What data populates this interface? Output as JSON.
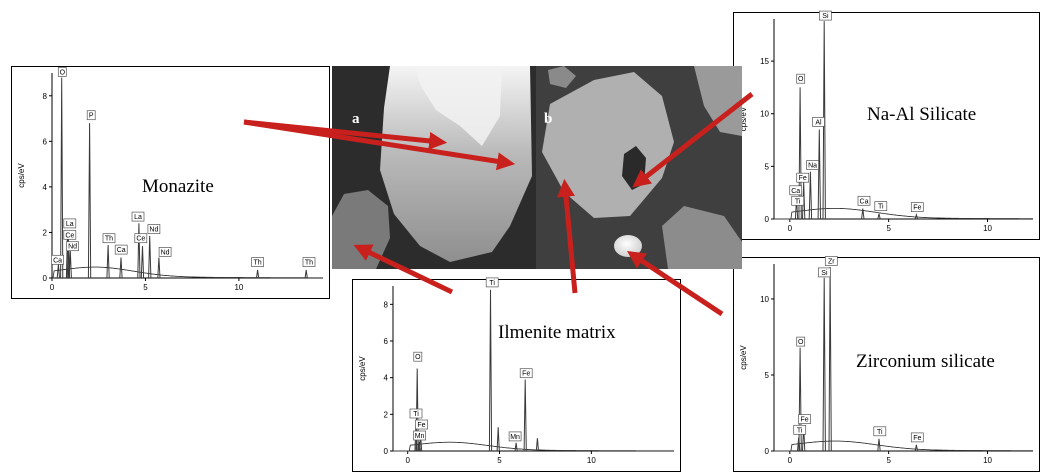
{
  "micrograph": {
    "label_a": "a",
    "label_b": "b"
  },
  "colors": {
    "arrow": "#c8201d",
    "spectrum_line": "#3a3a3a",
    "frame": "#000000"
  },
  "chart_data": [
    {
      "id": "monazite",
      "type": "line",
      "title": "",
      "mineral": "Monazite",
      "ylabel": "cps/eV",
      "xlabel": "",
      "xlim": [
        0,
        14.5
      ],
      "ylim": [
        0,
        9
      ],
      "xticks": [
        0,
        5,
        10
      ],
      "yticks": [
        0,
        2,
        4,
        6,
        8
      ],
      "peaks": [
        {
          "label": "O",
          "x": 0.52,
          "y": 8.8
        },
        {
          "label": "P",
          "x": 2.01,
          "y": 6.8
        },
        {
          "label": "La",
          "x": 0.83,
          "y": 2.1
        },
        {
          "label": "Ce",
          "x": 0.88,
          "y": 1.7
        },
        {
          "label": "Nd",
          "x": 0.98,
          "y": 1.2
        },
        {
          "label": "Ca",
          "x": 0.34,
          "y": 0.6
        },
        {
          "label": "Th",
          "x": 3.0,
          "y": 1.45
        },
        {
          "label": "Ca",
          "x": 3.69,
          "y": 0.9
        },
        {
          "label": "La",
          "x": 4.65,
          "y": 2.4
        },
        {
          "label": "Ce",
          "x": 4.84,
          "y": 1.4
        },
        {
          "label": "Nd",
          "x": 5.23,
          "y": 1.85
        },
        {
          "label": "Nd",
          "x": 5.72,
          "y": 0.9
        },
        {
          "label": "Th",
          "x": 11.0,
          "y": 0.35
        },
        {
          "label": "Th",
          "x": 13.6,
          "y": 0.35
        }
      ],
      "tags": [
        {
          "label": "O",
          "x": 0.55,
          "y": 8.85
        },
        {
          "label": "P",
          "x": 2.1,
          "y": 6.95
        },
        {
          "label": "La",
          "x": 0.95,
          "y": 2.2
        },
        {
          "label": "Ce",
          "x": 0.95,
          "y": 1.7
        },
        {
          "label": "Nd",
          "x": 1.1,
          "y": 1.2
        },
        {
          "label": "Ca",
          "x": 0.3,
          "y": 0.6
        },
        {
          "label": "Th",
          "x": 3.05,
          "y": 1.55
        },
        {
          "label": "Ca",
          "x": 3.7,
          "y": 1.05
        },
        {
          "label": "La",
          "x": 4.6,
          "y": 2.5
        },
        {
          "label": "Ce",
          "x": 4.75,
          "y": 1.55
        },
        {
          "label": "Nd",
          "x": 5.45,
          "y": 1.95
        },
        {
          "label": "Nd",
          "x": 6.05,
          "y": 0.95
        },
        {
          "label": "Th",
          "x": 11.0,
          "y": 0.5
        },
        {
          "label": "Th",
          "x": 13.75,
          "y": 0.5
        }
      ]
    },
    {
      "id": "ilmenite",
      "type": "line",
      "title": "",
      "mineral": "Ilmenite matrix",
      "ylabel": "cps/eV",
      "xlabel": "",
      "xlim": [
        -0.8,
        14.5
      ],
      "ylim": [
        0,
        9
      ],
      "xticks": [
        0,
        5,
        10
      ],
      "yticks": [
        0,
        2,
        4,
        6,
        8
      ],
      "peaks": [
        {
          "label": "O",
          "x": 0.52,
          "y": 4.5
        },
        {
          "label": "Ti",
          "x": 0.45,
          "y": 1.5
        },
        {
          "label": "Fe",
          "x": 0.7,
          "y": 0.9
        },
        {
          "label": "Mn",
          "x": 0.64,
          "y": 0.5
        },
        {
          "label": "Ti",
          "x": 4.51,
          "y": 8.8
        },
        {
          "label": "Ti",
          "x": 4.93,
          "y": 1.3
        },
        {
          "label": "Mn",
          "x": 5.9,
          "y": 0.45
        },
        {
          "label": "Fe",
          "x": 6.4,
          "y": 3.9
        },
        {
          "label": "Fe",
          "x": 7.06,
          "y": 0.7
        }
      ],
      "tags": [
        {
          "label": "O",
          "x": 0.55,
          "y": 4.9
        },
        {
          "label": "Ti",
          "x": 0.45,
          "y": 1.8
        },
        {
          "label": "Fe",
          "x": 0.75,
          "y": 1.2
        },
        {
          "label": "Mn",
          "x": 0.65,
          "y": 0.6
        },
        {
          "label": "Ti",
          "x": 4.6,
          "y": 8.95
        },
        {
          "label": "Mn",
          "x": 5.85,
          "y": 0.55
        },
        {
          "label": "Fe",
          "x": 6.45,
          "y": 4.0
        }
      ]
    },
    {
      "id": "na-al-silicate",
      "type": "line",
      "title": "",
      "mineral": "Na-Al Silicate",
      "ylabel": "cps/eV",
      "xlabel": "",
      "xlim": [
        -0.8,
        12.3
      ],
      "ylim": [
        0,
        19
      ],
      "xticks": [
        0,
        5,
        10
      ],
      "yticks": [
        0,
        5,
        10,
        15
      ],
      "peaks": [
        {
          "label": "O",
          "x": 0.52,
          "y": 12.5
        },
        {
          "label": "Fe",
          "x": 0.7,
          "y": 3.5
        },
        {
          "label": "Ca",
          "x": 0.34,
          "y": 2.0
        },
        {
          "label": "Na",
          "x": 1.04,
          "y": 4.5
        },
        {
          "label": "Al",
          "x": 1.49,
          "y": 8.5
        },
        {
          "label": "Si",
          "x": 1.74,
          "y": 18.8
        },
        {
          "label": "Ca",
          "x": 3.69,
          "y": 1.0
        },
        {
          "label": "Ti",
          "x": 4.51,
          "y": 0.5
        },
        {
          "label": "Fe",
          "x": 6.4,
          "y": 0.4
        }
      ],
      "tags": [
        {
          "label": "Si",
          "x": 1.8,
          "y": 18.9
        },
        {
          "label": "O",
          "x": 0.55,
          "y": 12.9
        },
        {
          "label": "Al",
          "x": 1.45,
          "y": 8.8
        },
        {
          "label": "Na",
          "x": 1.15,
          "y": 4.7
        },
        {
          "label": "Fe",
          "x": 0.65,
          "y": 3.5
        },
        {
          "label": "Ca",
          "x": 0.3,
          "y": 2.3
        },
        {
          "label": "Ti",
          "x": 0.4,
          "y": 1.3
        },
        {
          "label": "Ca",
          "x": 3.75,
          "y": 1.3
        },
        {
          "label": "Ti",
          "x": 4.6,
          "y": 0.8
        },
        {
          "label": "Fe",
          "x": 6.45,
          "y": 0.7
        }
      ]
    },
    {
      "id": "zirconium-silicate",
      "type": "line",
      "title": "",
      "mineral": "Zirconium silicate",
      "ylabel": "cps/eV",
      "xlabel": "",
      "xlim": [
        -0.8,
        12.3
      ],
      "ylim": [
        0,
        12.3
      ],
      "xticks": [
        0,
        5,
        10
      ],
      "yticks": [
        0,
        5,
        10
      ],
      "peaks": [
        {
          "label": "O",
          "x": 0.52,
          "y": 6.8
        },
        {
          "label": "Fe",
          "x": 0.7,
          "y": 1.6
        },
        {
          "label": "Ti",
          "x": 0.45,
          "y": 0.9
        },
        {
          "label": "Si",
          "x": 1.74,
          "y": 11.4
        },
        {
          "label": "Zr",
          "x": 2.04,
          "y": 12.1
        },
        {
          "label": "Ti",
          "x": 4.51,
          "y": 0.8
        },
        {
          "label": "Fe",
          "x": 6.4,
          "y": 0.4
        }
      ],
      "tags": [
        {
          "label": "Zr",
          "x": 2.1,
          "y": 12.2
        },
        {
          "label": "Si",
          "x": 1.75,
          "y": 11.45
        },
        {
          "label": "O",
          "x": 0.55,
          "y": 6.9
        },
        {
          "label": "Fe",
          "x": 0.75,
          "y": 1.8
        },
        {
          "label": "Ti",
          "x": 0.5,
          "y": 1.1
        },
        {
          "label": "Ti",
          "x": 4.55,
          "y": 1.0
        },
        {
          "label": "Fe",
          "x": 6.45,
          "y": 0.6
        }
      ]
    }
  ]
}
